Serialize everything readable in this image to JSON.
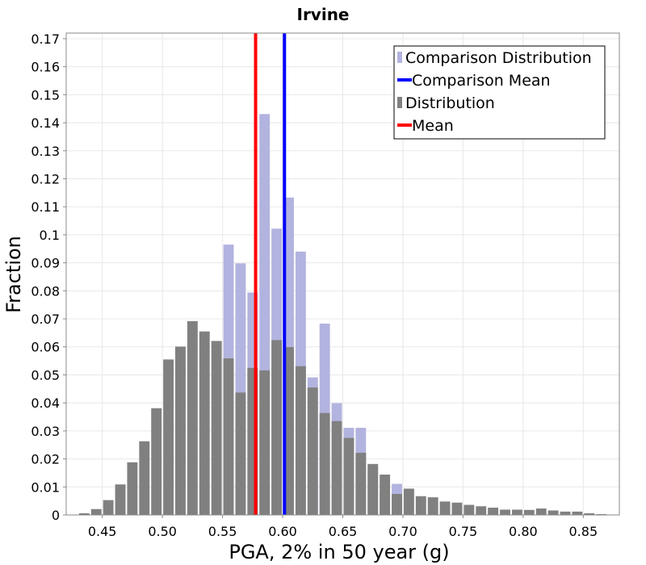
{
  "chart_data": {
    "type": "bar",
    "title": "Irvine",
    "xlabel": "PGA, 2% in 50 year (g)",
    "ylabel": "Fraction",
    "xlim": [
      0.42,
      0.88
    ],
    "ylim": [
      0,
      0.172
    ],
    "xticks": [
      0.45,
      0.5,
      0.55,
      0.6,
      0.65,
      0.7,
      0.75,
      0.8,
      0.85
    ],
    "yticks": [
      0,
      0.01,
      0.02,
      0.03,
      0.04,
      0.05,
      0.06,
      0.07,
      0.08,
      0.09,
      0.1,
      0.11,
      0.12,
      0.13,
      0.14,
      0.15,
      0.16,
      0.17
    ],
    "bin_width": 0.01,
    "grid": true,
    "legend_position": "top-right",
    "series": [
      {
        "name": "Comparison Distribution",
        "kind": "histogram",
        "color": "#b3b3e0",
        "x": [
          0.555,
          0.565,
          0.575,
          0.585,
          0.595,
          0.605,
          0.615,
          0.625,
          0.635,
          0.645,
          0.655,
          0.665,
          0.675,
          0.685,
          0.695
        ],
        "values": [
          0.0965,
          0.0898,
          0.0794,
          0.1431,
          0.1022,
          0.1133,
          0.094,
          0.0491,
          0.0683,
          0.0399,
          0.0311,
          0.0311,
          0.0171,
          0.0084,
          0.0111
        ]
      },
      {
        "name": "Comparison Mean",
        "kind": "vline",
        "color": "#0000ff",
        "x": 0.6015
      },
      {
        "name": "Distribution",
        "kind": "histogram",
        "color": "#808080",
        "x": [
          0.435,
          0.445,
          0.455,
          0.465,
          0.475,
          0.485,
          0.495,
          0.505,
          0.515,
          0.525,
          0.535,
          0.545,
          0.555,
          0.565,
          0.575,
          0.585,
          0.595,
          0.605,
          0.615,
          0.625,
          0.635,
          0.645,
          0.655,
          0.665,
          0.675,
          0.685,
          0.695,
          0.705,
          0.715,
          0.725,
          0.735,
          0.745,
          0.755,
          0.765,
          0.775,
          0.785,
          0.795,
          0.805,
          0.815,
          0.825,
          0.835,
          0.845,
          0.855,
          0.865
        ],
        "values": [
          0.0006,
          0.0021,
          0.0053,
          0.0109,
          0.0188,
          0.0263,
          0.0381,
          0.0555,
          0.0601,
          0.0692,
          0.0655,
          0.0621,
          0.0559,
          0.0437,
          0.0525,
          0.0516,
          0.0624,
          0.0599,
          0.0531,
          0.0455,
          0.0364,
          0.0335,
          0.0275,
          0.0222,
          0.0182,
          0.0144,
          0.0075,
          0.0094,
          0.0067,
          0.0063,
          0.0048,
          0.0044,
          0.0036,
          0.0031,
          0.0026,
          0.0019,
          0.0019,
          0.0018,
          0.0023,
          0.0016,
          0.0012,
          0.0012,
          0.0006,
          0.0003
        ]
      },
      {
        "name": "Mean",
        "kind": "vline",
        "color": "#ff0000",
        "x": 0.5775
      }
    ],
    "legend_order": [
      "Comparison Distribution",
      "Comparison Mean",
      "Distribution",
      "Mean"
    ]
  }
}
